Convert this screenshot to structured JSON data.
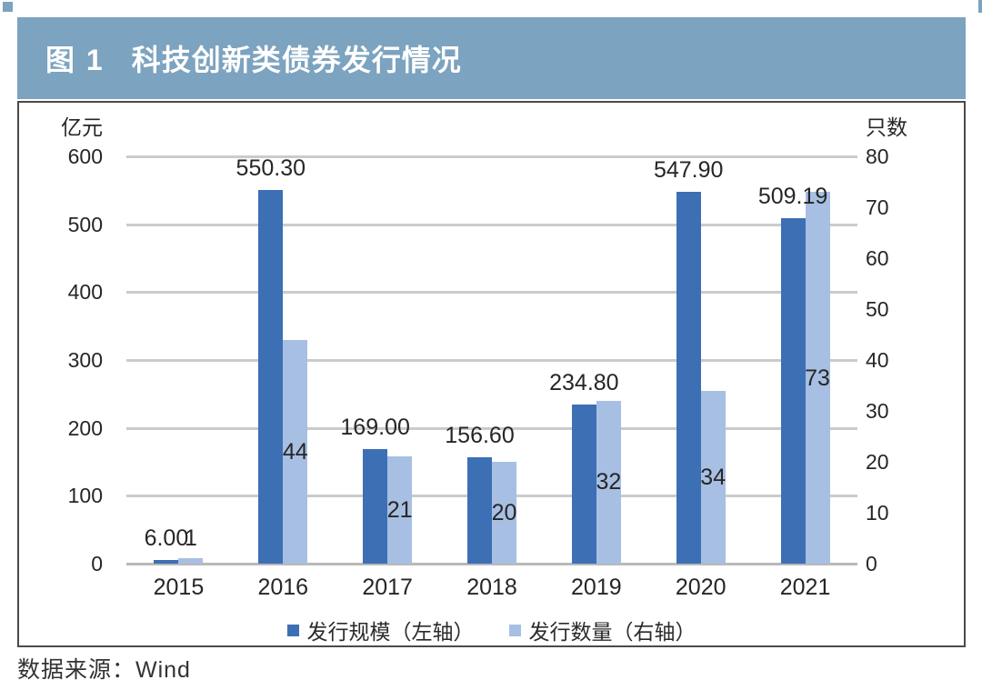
{
  "colors": {
    "accent": "#7ca3bf",
    "bar_dark": "#3d6fb5",
    "bar_light": "#a7bfe2",
    "grid": "#cbcbcb",
    "border": "#4a4a4a",
    "text": "#262626"
  },
  "header": {
    "figure_label": "图 1",
    "title": "科技创新类债券发行情况"
  },
  "chart_data": {
    "type": "bar",
    "title": "图 1 科技创新类债券发行情况",
    "categories": [
      "2015",
      "2016",
      "2017",
      "2018",
      "2019",
      "2020",
      "2021"
    ],
    "series": [
      {
        "name": "发行规模（左轴）",
        "axis": "left",
        "color": "#3d6fb5",
        "values": [
          6.0,
          550.3,
          169.0,
          156.6,
          234.8,
          547.9,
          509.19
        ],
        "labels": [
          "6.00",
          "550.30",
          "169.00",
          "156.60",
          "234.80",
          "547.90",
          "509.19"
        ]
      },
      {
        "name": "发行数量（右轴）",
        "axis": "right",
        "color": "#a7bfe2",
        "values": [
          1,
          44,
          21,
          20,
          32,
          34,
          73
        ],
        "labels": [
          "1",
          "44",
          "21",
          "20",
          "32",
          "34",
          "73"
        ]
      }
    ],
    "left_axis": {
      "title": "亿元",
      "min": 0,
      "max": 600,
      "step": 100,
      "ticks": [
        "600",
        "500",
        "400",
        "300",
        "200",
        "100",
        "0"
      ]
    },
    "right_axis": {
      "title": "只数",
      "min": 0,
      "max": 80,
      "step": 10,
      "ticks": [
        "80",
        "70",
        "60",
        "50",
        "40",
        "30",
        "20",
        "10",
        "0"
      ]
    },
    "grid": true,
    "legend_position": "bottom"
  },
  "footer": {
    "source": "数据来源：Wind"
  }
}
